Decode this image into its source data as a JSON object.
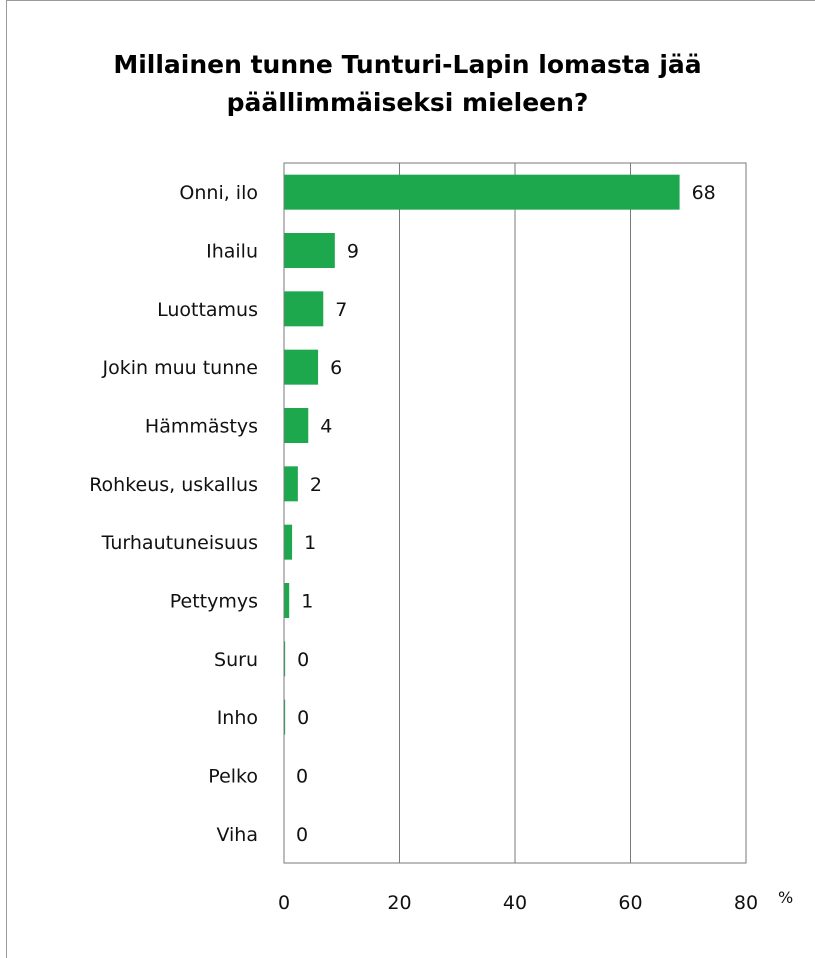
{
  "chart_data": {
    "type": "bar",
    "orientation": "horizontal",
    "title": [
      "Millainen tunne Tunturi-Lapin lomasta jää",
      "päällimmäiseksi mieleen?"
    ],
    "categories": [
      "Onni, ilo",
      "Ihailu",
      "Luottamus",
      "Jokin muu tunne",
      "Hämmästys",
      "Rohkeus, uskallus",
      "Turhautuneisuus",
      "Pettymys",
      "Suru",
      "Inho",
      "Pelko",
      "Viha"
    ],
    "values": [
      68,
      9,
      7,
      6,
      4,
      2,
      1,
      1,
      0,
      0,
      0,
      0
    ],
    "display_values": [
      0.685,
      0.088,
      0.068,
      0.059,
      0.042,
      0.024,
      0.014,
      0.009,
      0.002,
      0.002,
      0,
      0
    ],
    "xlim": [
      0,
      80
    ],
    "xticks": [
      "0",
      "20",
      "40",
      "60",
      "80"
    ],
    "xunit": "%",
    "grid": true,
    "bar_color": "#1ea84e"
  }
}
